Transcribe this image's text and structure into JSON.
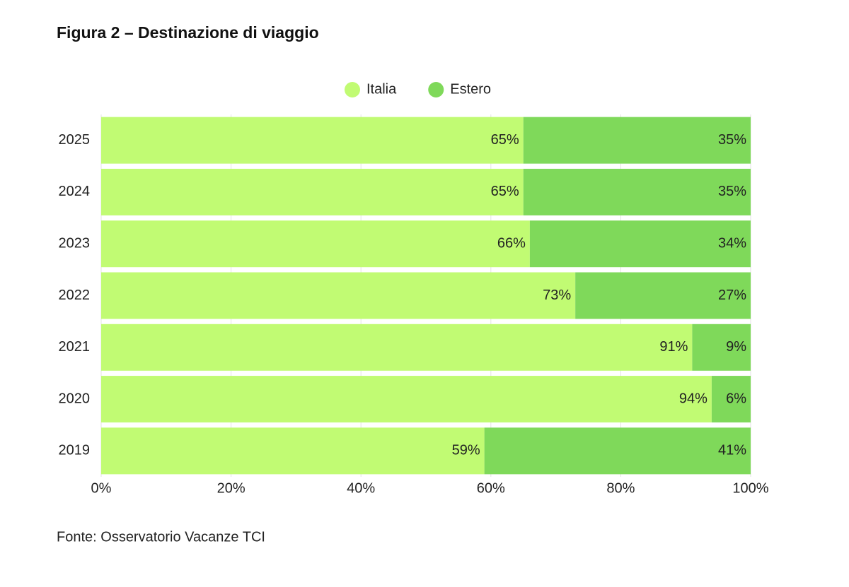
{
  "chart_data": {
    "type": "stacked-barh",
    "title": "Figura 2 – Destinazione di viaggio",
    "source": "Fonte: Osservatorio Vacanze TCI",
    "categories": [
      "2025",
      "2024",
      "2023",
      "2022",
      "2021",
      "2020",
      "2019"
    ],
    "series": [
      {
        "name": "Italia",
        "color": "#c1fb73",
        "values": [
          65,
          65,
          66,
          73,
          91,
          94,
          59
        ],
        "value_labels": [
          "65%",
          "65%",
          "66%",
          "73%",
          "91%",
          "94%",
          "59%"
        ]
      },
      {
        "name": "Estero",
        "color": "#7fd95a",
        "values": [
          35,
          35,
          34,
          27,
          9,
          6,
          41
        ],
        "value_labels": [
          "35%",
          "35%",
          "34%",
          "27%",
          "9%",
          "6%",
          "41%"
        ]
      }
    ],
    "xlim": [
      0,
      100
    ],
    "xticks": [
      {
        "value": 0,
        "label": "0%"
      },
      {
        "value": 20,
        "label": "20%"
      },
      {
        "value": 40,
        "label": "40%"
      },
      {
        "value": 60,
        "label": "60%"
      },
      {
        "value": 80,
        "label": "80%"
      },
      {
        "value": 100,
        "label": "100%"
      }
    ],
    "grid": true,
    "legend": "top"
  }
}
